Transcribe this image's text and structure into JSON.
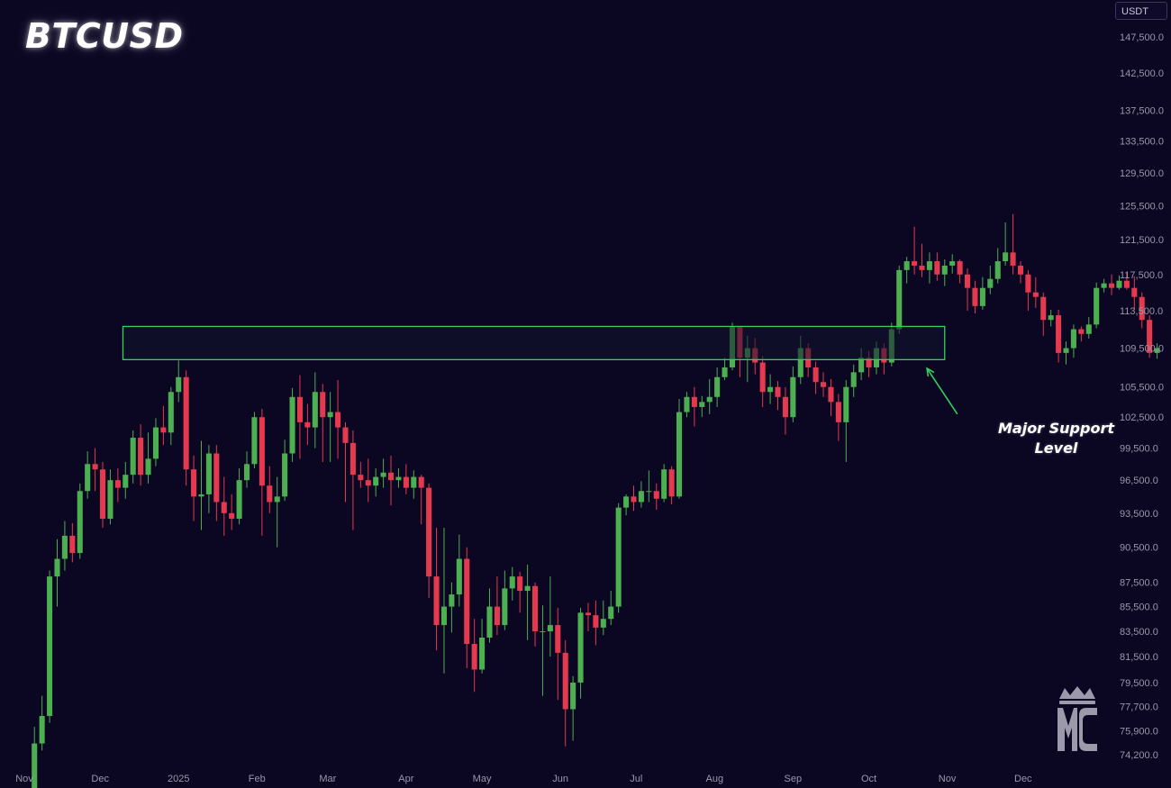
{
  "title": "BTCUSD",
  "currency": "USDT",
  "annotation": {
    "line1": "Major Support",
    "line2": "Level"
  },
  "logo_text": "MC",
  "colors": {
    "background": "#0b0622",
    "up": "#4caf50",
    "down": "#e5394f",
    "zone_border": "#34d15b",
    "zone_fill": "#12162e",
    "axis_text": "#9a97ab"
  },
  "chart_data": {
    "type": "candlestick",
    "title": "BTCUSD",
    "xlabel": "",
    "ylabel": "",
    "y_ticks": [
      147500,
      142500,
      137500,
      133500,
      129500,
      125500,
      121500,
      117500,
      113500,
      109500,
      105500,
      102500,
      99500,
      96500,
      93500,
      90500,
      87500,
      85500,
      83500,
      81500,
      79500,
      77700,
      75900,
      74200
    ],
    "y_tick_labels": [
      "147,500.0",
      "142,500.0",
      "137,500.0",
      "133,500.0",
      "129,500.0",
      "125,500.0",
      "121,500.0",
      "117,500.0",
      "113,500.0",
      "109,500.0",
      "105,500.0",
      "102,500.0",
      "99,500.0",
      "96,500.0",
      "93,500.0",
      "90,500.0",
      "87,500.0",
      "85,500.0",
      "83,500.0",
      "81,500.0",
      "79,500.0",
      "77,700.0",
      "75,900.0",
      "74,200.0"
    ],
    "x_ticks": [
      "2024-11-01",
      "2024-12-01",
      "2025-01-01",
      "2025-02-01",
      "2025-03-01",
      "2025-04-01",
      "2025-05-01",
      "2025-06-01",
      "2025-07-01",
      "2025-08-01",
      "2025-09-01",
      "2025-10-01",
      "2025-11-01",
      "2025-12-01"
    ],
    "x_tick_labels": [
      "Nov",
      "Dec",
      "2025",
      "Feb",
      "Mar",
      "Apr",
      "May",
      "Jun",
      "Jul",
      "Aug",
      "Sep",
      "Oct",
      "Nov",
      "Dec"
    ],
    "x_range": [
      "2024-11-01",
      "2025-12-31"
    ],
    "support_zone": {
      "x_start": "2024-12-10",
      "x_end": "2025-10-31",
      "low": 108300,
      "high": 111800
    },
    "arrow": {
      "from": "2025-11-05",
      "from_y": 102800,
      "to": "2025-10-24",
      "to_y": 107400
    },
    "start_date": "2024-11-05",
    "interval_days": 3,
    "candles": [
      [
        70000,
        75000,
        69500,
        76200
      ],
      [
        75000,
        77000,
        74500,
        78500
      ],
      [
        77000,
        88000,
        76500,
        88500
      ],
      [
        88000,
        89500,
        85500,
        91200
      ],
      [
        89500,
        91500,
        88500,
        92800
      ],
      [
        91500,
        90000,
        89200,
        92600
      ],
      [
        90000,
        95500,
        89500,
        96200
      ],
      [
        95500,
        98000,
        94800,
        99200
      ],
      [
        98000,
        97500,
        95500,
        99500
      ],
      [
        97500,
        93000,
        92200,
        98200
      ],
      [
        93000,
        96500,
        92500,
        97500
      ],
      [
        96500,
        95800,
        94500,
        97600
      ],
      [
        95800,
        97000,
        94800,
        98200
      ],
      [
        97000,
        100500,
        96200,
        101200
      ],
      [
        100500,
        97000,
        96000,
        101800
      ],
      [
        97000,
        98500,
        96200,
        101000
      ],
      [
        98500,
        101500,
        97800,
        102400
      ],
      [
        101500,
        101000,
        99800,
        103600
      ],
      [
        101000,
        105000,
        99800,
        105500
      ],
      [
        105000,
        106500,
        104000,
        108200
      ],
      [
        106500,
        97500,
        96000,
        107200
      ],
      [
        97500,
        95000,
        92800,
        98800
      ],
      [
        95000,
        95200,
        92000,
        100200
      ],
      [
        95200,
        99000,
        93500,
        99800
      ],
      [
        99000,
        94500,
        92800,
        99800
      ],
      [
        94500,
        93500,
        91500,
        96800
      ],
      [
        93500,
        93000,
        92000,
        95200
      ],
      [
        93000,
        96500,
        92500,
        97600
      ],
      [
        96500,
        98000,
        95800,
        99200
      ],
      [
        98000,
        102500,
        97600,
        103000
      ],
      [
        102500,
        96000,
        91500,
        103300
      ],
      [
        96000,
        94500,
        93500,
        97800
      ],
      [
        94500,
        95000,
        90500,
        96800
      ],
      [
        95000,
        99000,
        94600,
        100300
      ],
      [
        99000,
        104500,
        98200,
        105400
      ],
      [
        104500,
        102000,
        98500,
        106700
      ],
      [
        102000,
        101500,
        99800,
        103800
      ],
      [
        101500,
        105000,
        99500,
        107000
      ],
      [
        105000,
        102500,
        98200,
        105800
      ],
      [
        102500,
        103000,
        98200,
        105000
      ],
      [
        103000,
        101500,
        98500,
        106200
      ],
      [
        101500,
        100000,
        94500,
        102000
      ],
      [
        100000,
        97000,
        92000,
        101200
      ],
      [
        97000,
        96500,
        95800,
        98200
      ],
      [
        96500,
        96000,
        94500,
        98500
      ],
      [
        96000,
        96800,
        95000,
        97600
      ],
      [
        96800,
        97200,
        95800,
        98500
      ],
      [
        97200,
        96500,
        94200,
        98800
      ],
      [
        96500,
        96800,
        95800,
        97600
      ],
      [
        96800,
        95800,
        95200,
        98000
      ],
      [
        95800,
        96800,
        94800,
        97400
      ],
      [
        96800,
        95800,
        92500,
        97000
      ],
      [
        95800,
        88000,
        86200,
        96200
      ],
      [
        88000,
        84000,
        82000,
        92200
      ],
      [
        84000,
        85500,
        80200,
        92200
      ],
      [
        85500,
        86500,
        83400,
        87500
      ],
      [
        86500,
        89500,
        85500,
        91600
      ],
      [
        89500,
        82500,
        80600,
        90500
      ],
      [
        82500,
        80500,
        78800,
        84500
      ],
      [
        80500,
        83000,
        80200,
        84500
      ],
      [
        83000,
        85500,
        82600,
        87000
      ],
      [
        85500,
        84000,
        83200,
        88000
      ],
      [
        84000,
        87000,
        83600,
        88500
      ],
      [
        87000,
        88000,
        86000,
        88800
      ],
      [
        88000,
        86800,
        85000,
        88400
      ],
      [
        86800,
        87200,
        82800,
        89000
      ],
      [
        87200,
        83500,
        82300,
        87500
      ],
      [
        83500,
        83500,
        78500,
        85600
      ],
      [
        83500,
        84000,
        81500,
        88000
      ],
      [
        84000,
        81800,
        78200,
        85400
      ],
      [
        81800,
        77500,
        74800,
        82800
      ],
      [
        77500,
        79500,
        75200,
        80000
      ],
      [
        79500,
        85000,
        78300,
        85400
      ],
      [
        85000,
        84800,
        83500,
        85800
      ],
      [
        84800,
        83800,
        82400,
        86000
      ],
      [
        83800,
        84500,
        83200,
        86000
      ],
      [
        84500,
        85500,
        84000,
        86800
      ],
      [
        85500,
        94000,
        85000,
        94400
      ],
      [
        94000,
        95000,
        93300,
        95200
      ],
      [
        95000,
        94500,
        93700,
        96000
      ],
      [
        94500,
        95500,
        94000,
        96400
      ],
      [
        95500,
        95500,
        94500,
        97400
      ],
      [
        95500,
        94800,
        93800,
        96200
      ],
      [
        94800,
        97500,
        94500,
        98000
      ],
      [
        97500,
        95000,
        94300,
        97800
      ],
      [
        95000,
        103000,
        94800,
        104300
      ],
      [
        103000,
        104500,
        102500,
        105000
      ],
      [
        104500,
        103500,
        101600,
        105500
      ],
      [
        103500,
        104000,
        102500,
        104600
      ],
      [
        104000,
        104500,
        102800,
        106300
      ],
      [
        104500,
        106500,
        103500,
        107500
      ],
      [
        106500,
        107500,
        106200,
        108500
      ],
      [
        107500,
        111800,
        107200,
        112200
      ],
      [
        111800,
        108500,
        106500,
        111800
      ],
      [
        108500,
        109500,
        106000,
        110800
      ],
      [
        109500,
        108000,
        106800,
        110600
      ],
      [
        108000,
        105000,
        103500,
        108700
      ],
      [
        105000,
        105500,
        103800,
        106800
      ],
      [
        105500,
        104500,
        103200,
        106100
      ],
      [
        104500,
        102500,
        100800,
        105500
      ],
      [
        102500,
        106500,
        102000,
        107600
      ],
      [
        106500,
        109500,
        105800,
        110800
      ],
      [
        109500,
        107500,
        106500,
        110000
      ],
      [
        107500,
        106000,
        104800,
        108100
      ],
      [
        106000,
        105500,
        104500,
        107000
      ],
      [
        105500,
        104000,
        102600,
        106300
      ],
      [
        104000,
        102000,
        100200,
        104800
      ],
      [
        102000,
        105500,
        98200,
        106200
      ],
      [
        105500,
        107000,
        104500,
        107800
      ],
      [
        107000,
        108500,
        106200,
        109500
      ],
      [
        108500,
        107500,
        106500,
        109200
      ],
      [
        107500,
        109500,
        106800,
        110200
      ],
      [
        109500,
        108000,
        106800,
        110000
      ],
      [
        108000,
        111500,
        107600,
        112200
      ],
      [
        111500,
        118000,
        111000,
        118500
      ],
      [
        118000,
        119000,
        116500,
        119500
      ],
      [
        119000,
        118500,
        117500,
        123000
      ],
      [
        118500,
        118000,
        117200,
        121000
      ],
      [
        118000,
        119000,
        116500,
        120000
      ],
      [
        119000,
        117500,
        116800,
        120000
      ],
      [
        117500,
        118500,
        116200,
        119200
      ],
      [
        118500,
        119000,
        117600,
        119800
      ],
      [
        119000,
        117500,
        116500,
        119200
      ],
      [
        117500,
        116000,
        113500,
        118200
      ],
      [
        116000,
        114000,
        113200,
        116800
      ],
      [
        114000,
        116000,
        113600,
        117200
      ],
      [
        116000,
        117000,
        115300,
        118500
      ],
      [
        117000,
        119000,
        116500,
        120500
      ],
      [
        119000,
        120000,
        118500,
        123500
      ],
      [
        120000,
        118500,
        117500,
        124500
      ],
      [
        118500,
        117500,
        116500,
        119000
      ],
      [
        117500,
        115500,
        113500,
        118000
      ],
      [
        115500,
        115000,
        113800,
        117200
      ],
      [
        115000,
        112500,
        110800,
        115500
      ],
      [
        112500,
        113000,
        111800,
        113600
      ],
      [
        113000,
        109000,
        108000,
        113600
      ],
      [
        109000,
        109500,
        107800,
        110200
      ],
      [
        109500,
        111500,
        108500,
        112000
      ],
      [
        111500,
        111000,
        110200,
        111800
      ],
      [
        111000,
        112000,
        110500,
        112800
      ],
      [
        112000,
        116000,
        111600,
        116600
      ],
      [
        116000,
        116500,
        115500,
        117000
      ],
      [
        116500,
        116000,
        115200,
        117500
      ],
      [
        116000,
        116800,
        115800,
        117400
      ],
      [
        116800,
        116000,
        115800,
        117700
      ],
      [
        116000,
        115000,
        113600,
        117300
      ],
      [
        115000,
        112500,
        111600,
        115500
      ],
      [
        112500,
        109000,
        108500,
        113000
      ],
      [
        109000,
        109500,
        108400,
        110000
      ]
    ]
  }
}
